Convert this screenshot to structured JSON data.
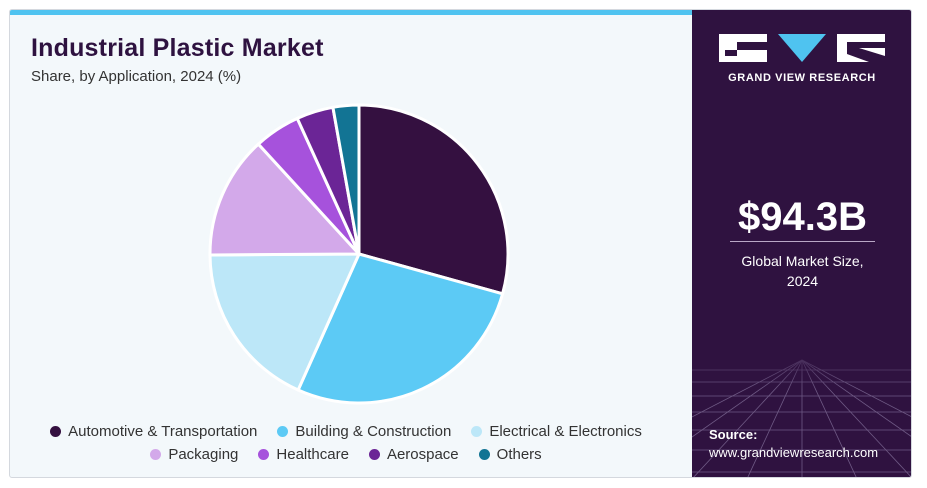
{
  "chart_data": {
    "type": "pie",
    "title": "Industrial Plastic Market",
    "subtitle": "Share, by Application, 2024 (%)",
    "slices": [
      {
        "name": "Automotive & Transportation",
        "value": 29.3,
        "color": "#341040"
      },
      {
        "name": "Building & Construction",
        "value": 27.4,
        "color": "#5ccaf5"
      },
      {
        "name": "Electrical & Electronics",
        "value": 18.2,
        "color": "#bce7f8"
      },
      {
        "name": "Packaging",
        "value": 13.3,
        "color": "#d3a9ea"
      },
      {
        "name": "Healthcare",
        "value": 5.0,
        "color": "#a652dc"
      },
      {
        "name": "Aerospace",
        "value": 4.0,
        "color": "#6b2596"
      },
      {
        "name": "Others",
        "value": 2.8,
        "color": "#127494"
      }
    ],
    "start_angle_deg": 0,
    "direction": "clockwise",
    "legend": "bottom"
  },
  "legend": {
    "items": [
      {
        "label": "Automotive & Transportation",
        "color": "#341040"
      },
      {
        "label": "Building & Construction",
        "color": "#5ccaf5"
      },
      {
        "label": "Electrical & Electronics",
        "color": "#bce7f8"
      },
      {
        "label": "Packaging",
        "color": "#d3a9ea"
      },
      {
        "label": "Healthcare",
        "color": "#a652dc"
      },
      {
        "label": "Aerospace",
        "color": "#6b2596"
      },
      {
        "label": "Others",
        "color": "#127494"
      }
    ]
  },
  "brand": {
    "name": "GRAND VIEW RESEARCH",
    "panel_color": "#2f1240",
    "accent_color": "#4fc3f0"
  },
  "summary": {
    "value": "$94.3B",
    "caption_line1": "Global Market Size,",
    "caption_line2": "2024"
  },
  "source": {
    "label": "Source:",
    "url": "www.grandviewresearch.com"
  }
}
